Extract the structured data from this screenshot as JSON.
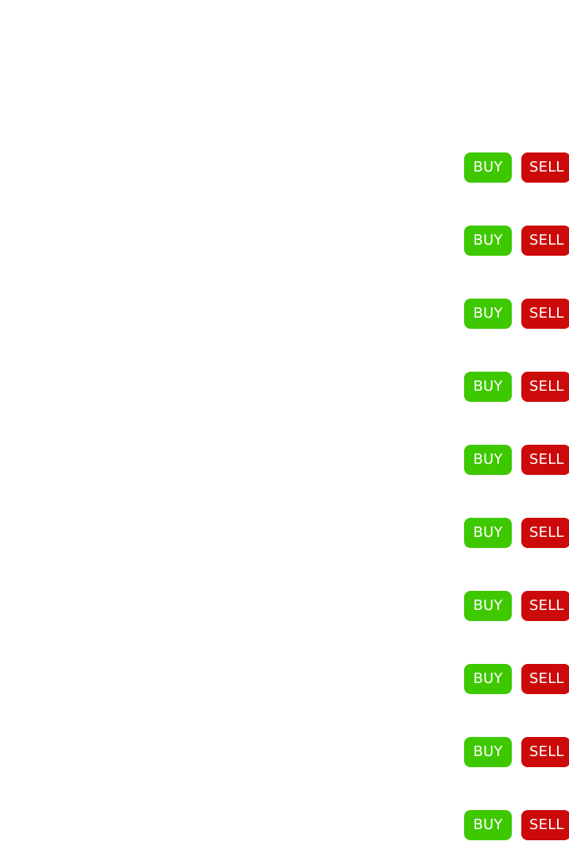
{
  "trade_rows": [
    {
      "buy_label": "BUY",
      "sell_label": "SELL"
    },
    {
      "buy_label": "BUY",
      "sell_label": "SELL"
    },
    {
      "buy_label": "BUY",
      "sell_label": "SELL"
    },
    {
      "buy_label": "BUY",
      "sell_label": "SELL"
    },
    {
      "buy_label": "BUY",
      "sell_label": "SELL"
    },
    {
      "buy_label": "BUY",
      "sell_label": "SELL"
    },
    {
      "buy_label": "BUY",
      "sell_label": "SELL"
    },
    {
      "buy_label": "BUY",
      "sell_label": "SELL"
    },
    {
      "buy_label": "BUY",
      "sell_label": "SELL"
    },
    {
      "buy_label": "BUY",
      "sell_label": "SELL"
    }
  ],
  "colors": {
    "buy": "#3ec800",
    "sell": "#cc0a0a",
    "background": "#ffffff"
  }
}
